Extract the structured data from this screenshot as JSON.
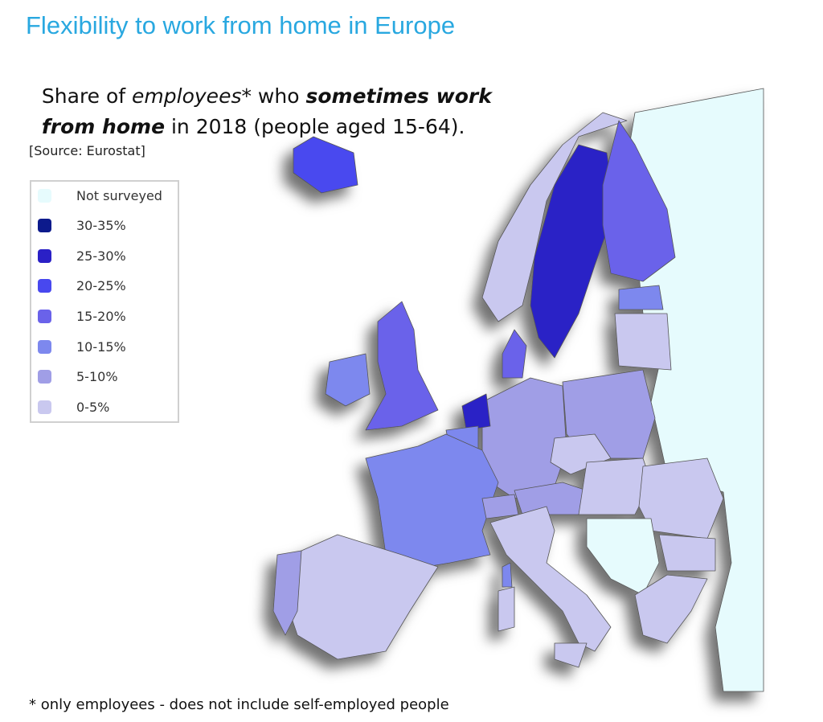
{
  "title": "Flexibility to work from home in Europe",
  "subtitle": {
    "line1": [
      "Share of ",
      "employees",
      "* who ",
      "sometimes work"
    ],
    "line2": [
      "from home",
      " in 2018 (people aged 15-64)."
    ]
  },
  "source": "[Source: Eurostat]",
  "legend": {
    "items": [
      {
        "label": "Not surveyed",
        "color": "#e6fbfd"
      },
      {
        "label": "30-35%",
        "color": "#0c1a8c"
      },
      {
        "label": "25-30%",
        "color": "#2a20c6"
      },
      {
        "label": "20-25%",
        "color": "#4848ef"
      },
      {
        "label": "15-20%",
        "color": "#6a62ea"
      },
      {
        "label": "10-15%",
        "color": "#7d88ee"
      },
      {
        "label": "5-10%",
        "color": "#a09ee6"
      },
      {
        "label": "0-5%",
        "color": "#c9c8ef"
      }
    ]
  },
  "footnote": "* only employees - does not include self-employed people"
}
